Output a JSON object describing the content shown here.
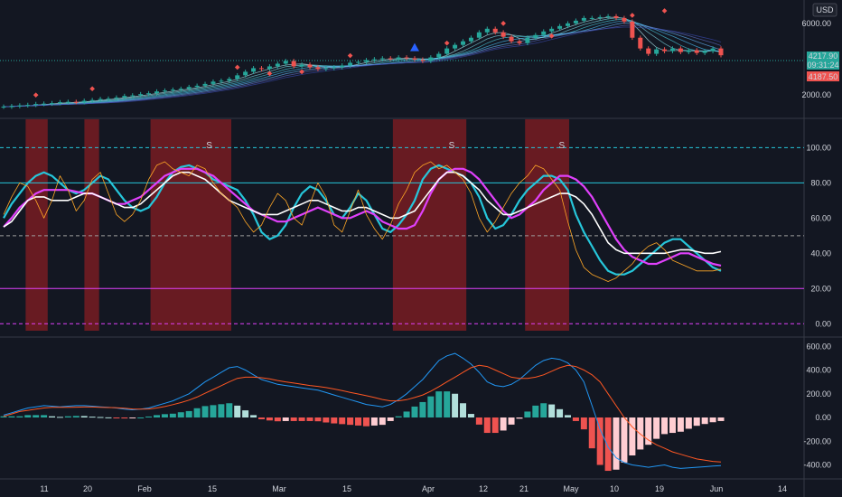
{
  "currency": "USD",
  "price_pane": {
    "y_ticks": [
      "6000.00",
      "2000.00"
    ],
    "price_tag": "4217.90",
    "countdown": "09:31:24",
    "low_tag": "4187.50",
    "colors": {
      "tag": "#26a69a",
      "low_tag": "#ef5350",
      "up": "#26a69a",
      "down": "#ef5350"
    },
    "close": [
      1.35,
      1.38,
      1.42,
      1.45,
      1.5,
      1.52,
      1.55,
      1.6,
      1.62,
      1.6,
      1.68,
      1.72,
      1.78,
      1.8,
      1.86,
      1.95,
      1.98,
      2.05,
      2.1,
      2.2,
      2.25,
      2.3,
      2.35,
      2.45,
      2.52,
      2.62,
      2.75,
      2.8,
      2.9,
      3.1,
      3.3,
      3.5,
      3.45,
      3.6,
      3.75,
      3.9,
      3.6,
      3.7,
      3.55,
      3.45,
      3.5,
      3.55,
      3.65,
      3.8,
      3.85,
      3.95,
      4.0,
      4.05,
      4.0,
      4.1,
      4.05,
      3.98,
      3.9,
      4.1,
      4.3,
      4.6,
      4.8,
      5.0,
      5.2,
      5.5,
      5.7,
      5.5,
      5.25,
      5.0,
      4.9,
      5.2,
      5.35,
      5.55,
      5.7,
      5.85,
      6.0,
      6.15,
      6.3,
      6.3,
      6.35,
      6.4,
      6.3,
      6.1,
      5.2,
      4.6,
      4.3,
      4.55,
      4.45,
      4.6,
      4.4,
      4.5,
      4.35,
      4.45,
      4.6,
      4.22
    ]
  },
  "stoch_pane": {
    "y_ticks": [
      "100.00",
      "80.00",
      "60.00",
      "40.00",
      "20.00",
      "0.00"
    ],
    "levels": [
      100,
      80,
      50,
      20,
      0
    ],
    "ylim": [
      -5,
      112
    ],
    "signal_marks": [
      {
        "x": 28,
        "label": "S"
      },
      {
        "x": 61,
        "label": "S"
      },
      {
        "x": 76,
        "label": "S"
      }
    ],
    "shaded_ranges": [
      [
        3,
        6
      ],
      [
        11,
        13
      ],
      [
        20,
        31
      ],
      [
        53,
        63
      ],
      [
        71,
        77
      ]
    ],
    "colors": {
      "cyan": "#26c6da",
      "magenta": "#e040fb",
      "white": "#ffffff",
      "orange": "#ffa726",
      "shade": "#781c22"
    }
  },
  "macd_pane": {
    "y_ticks": [
      "600.00",
      "400.00",
      "200.00",
      "0.00",
      "-200.00",
      "-400.00"
    ],
    "ylim": [
      -480,
      640
    ],
    "colors": {
      "macd": "#2196f3",
      "signal": "#ff5722",
      "hist_pos": "#26a69a",
      "hist_pos_light": "#b2dfdb",
      "hist_neg": "#ef5350",
      "hist_neg_light": "#ffcdd2"
    }
  },
  "chart_data": [
    {
      "type": "line",
      "name": "stochastic-rsi",
      "x_count": 90,
      "series": [
        {
          "color": "#26c6da",
          "values": [
            60,
            68,
            74,
            80,
            84,
            86,
            84,
            80,
            76,
            74,
            76,
            80,
            84,
            82,
            76,
            70,
            66,
            64,
            66,
            72,
            80,
            86,
            89,
            90,
            88,
            86,
            82,
            80,
            78,
            76,
            70,
            62,
            52,
            48,
            50,
            56,
            66,
            74,
            78,
            76,
            70,
            62,
            60,
            66,
            74,
            70,
            62,
            54,
            52,
            56,
            62,
            70,
            82,
            88,
            90,
            88,
            86,
            84,
            80,
            72,
            60,
            54,
            56,
            62,
            70,
            76,
            80,
            84,
            84,
            82,
            76,
            62,
            52,
            44,
            36,
            30,
            28,
            28,
            30,
            34,
            38,
            42,
            46,
            48,
            48,
            44,
            40,
            36,
            32,
            30
          ]
        },
        {
          "color": "#e040fb",
          "values": [
            55,
            60,
            66,
            70,
            74,
            76,
            76,
            76,
            76,
            75,
            74,
            74,
            72,
            70,
            68,
            68,
            70,
            72,
            76,
            80,
            84,
            86,
            88,
            88,
            88,
            86,
            84,
            80,
            76,
            72,
            68,
            64,
            62,
            60,
            58,
            58,
            60,
            62,
            64,
            66,
            64,
            62,
            60,
            60,
            62,
            64,
            62,
            58,
            56,
            54,
            54,
            56,
            64,
            74,
            82,
            86,
            88,
            88,
            86,
            82,
            76,
            70,
            64,
            60,
            62,
            66,
            70,
            76,
            80,
            84,
            84,
            82,
            78,
            72,
            64,
            56,
            48,
            42,
            38,
            36,
            34,
            34,
            36,
            38,
            40,
            40,
            38,
            36,
            34,
            33
          ]
        },
        {
          "color": "#ffffff",
          "values": [
            55,
            58,
            64,
            70,
            72,
            72,
            70,
            70,
            70,
            72,
            74,
            74,
            72,
            70,
            68,
            66,
            66,
            68,
            72,
            76,
            80,
            84,
            86,
            86,
            84,
            82,
            78,
            74,
            70,
            68,
            66,
            64,
            62,
            62,
            62,
            64,
            66,
            68,
            70,
            70,
            68,
            66,
            64,
            64,
            66,
            66,
            64,
            62,
            60,
            60,
            62,
            64,
            70,
            76,
            82,
            86,
            86,
            84,
            80,
            76,
            70,
            66,
            62,
            62,
            64,
            66,
            68,
            70,
            72,
            74,
            74,
            72,
            68,
            62,
            54,
            46,
            42,
            40,
            40,
            40,
            40,
            40,
            40,
            41,
            42,
            42,
            41,
            40,
            40,
            41
          ]
        },
        {
          "color": "#ffa726",
          "values": [
            62,
            72,
            80,
            78,
            70,
            60,
            70,
            84,
            76,
            64,
            70,
            82,
            86,
            74,
            62,
            58,
            62,
            70,
            82,
            90,
            92,
            88,
            86,
            84,
            90,
            88,
            80,
            74,
            70,
            66,
            58,
            52,
            56,
            66,
            74,
            70,
            60,
            56,
            68,
            80,
            72,
            56,
            52,
            64,
            76,
            62,
            54,
            48,
            56,
            68,
            76,
            86,
            90,
            92,
            88,
            90,
            86,
            82,
            74,
            60,
            52,
            58,
            66,
            74,
            80,
            84,
            90,
            88,
            82,
            76,
            58,
            42,
            32,
            28,
            26,
            24,
            26,
            30,
            34,
            40,
            44,
            46,
            42,
            36,
            34,
            32,
            30,
            30,
            30,
            31
          ]
        }
      ]
    },
    {
      "type": "bar",
      "name": "macd",
      "x_count": 90,
      "series": [
        {
          "color": "#2196f3",
          "values": [
            20,
            40,
            60,
            80,
            90,
            100,
            95,
            90,
            95,
            100,
            100,
            95,
            90,
            85,
            80,
            70,
            65,
            70,
            80,
            100,
            120,
            140,
            170,
            200,
            250,
            300,
            340,
            380,
            420,
            430,
            400,
            360,
            320,
            300,
            280,
            270,
            260,
            250,
            240,
            230,
            210,
            190,
            170,
            150,
            130,
            110,
            100,
            90,
            110,
            150,
            200,
            260,
            320,
            400,
            480,
            520,
            540,
            500,
            450,
            380,
            300,
            270,
            260,
            280,
            320,
            380,
            440,
            480,
            500,
            490,
            460,
            400,
            300,
            100,
            -100,
            -250,
            -340,
            -380,
            -400,
            -410,
            -420,
            -410,
            -400,
            -420,
            -430,
            -425,
            -420,
            -415,
            -410,
            -405
          ]
        },
        {
          "color": "#ff5722",
          "values": [
            10,
            30,
            50,
            60,
            70,
            80,
            85,
            85,
            85,
            87,
            88,
            88,
            86,
            84,
            82,
            78,
            72,
            70,
            72,
            80,
            92,
            108,
            126,
            146,
            172,
            204,
            236,
            268,
            300,
            330,
            340,
            340,
            335,
            325,
            312,
            300,
            290,
            280,
            270,
            262,
            252,
            240,
            226,
            212,
            198,
            184,
            168,
            152,
            140,
            140,
            150,
            168,
            190,
            222,
            260,
            300,
            340,
            380,
            420,
            440,
            430,
            400,
            370,
            340,
            330,
            330,
            340,
            360,
            390,
            420,
            440,
            430,
            400,
            360,
            300,
            200,
            100,
            0,
            -80,
            -140,
            -190,
            -230,
            -260,
            -290,
            -310,
            -330,
            -350,
            -360,
            -370,
            -375
          ]
        },
        {
          "color": "#26a69a",
          "values": [
            10,
            10,
            10,
            20,
            20,
            20,
            10,
            5,
            10,
            13,
            12,
            7,
            4,
            1,
            -2,
            -8,
            -7,
            0,
            8,
            20,
            28,
            32,
            44,
            54,
            78,
            96,
            104,
            112,
            120,
            100,
            60,
            20,
            -15,
            -25,
            -32,
            -30,
            -30,
            -30,
            -30,
            -32,
            -42,
            -50,
            -56,
            -62,
            -68,
            -74,
            -68,
            -62,
            -30,
            10,
            50,
            92,
            130,
            178,
            220,
            220,
            200,
            120,
            30,
            -60,
            -130,
            -130,
            -110,
            -60,
            -10,
            50,
            100,
            120,
            110,
            70,
            20,
            -30,
            -100,
            -260,
            -400,
            -450,
            -440,
            -380,
            -320,
            -270,
            -230,
            -180,
            -140,
            -130,
            -120,
            -95,
            -70,
            -55,
            -40,
            -30
          ]
        }
      ]
    }
  ],
  "x_axis": {
    "ticks": [
      {
        "i": 6,
        "label": "11"
      },
      {
        "i": 12,
        "label": "20"
      },
      {
        "i": 20,
        "label": "Feb"
      },
      {
        "i": 29,
        "label": "15"
      },
      {
        "i": 38,
        "label": "Mar"
      },
      {
        "i": 47,
        "label": "15"
      },
      {
        "i": 58,
        "label": "Apr"
      },
      {
        "i": 66,
        "label": "12"
      },
      {
        "i": 72,
        "label": "21"
      },
      {
        "i": 78,
        "label": "May"
      },
      {
        "i": 84,
        "label": "10"
      },
      {
        "i": 90,
        "label": "19"
      },
      {
        "i": 99,
        "label": "Jun"
      },
      {
        "i": 107,
        "label": "14"
      }
    ]
  }
}
